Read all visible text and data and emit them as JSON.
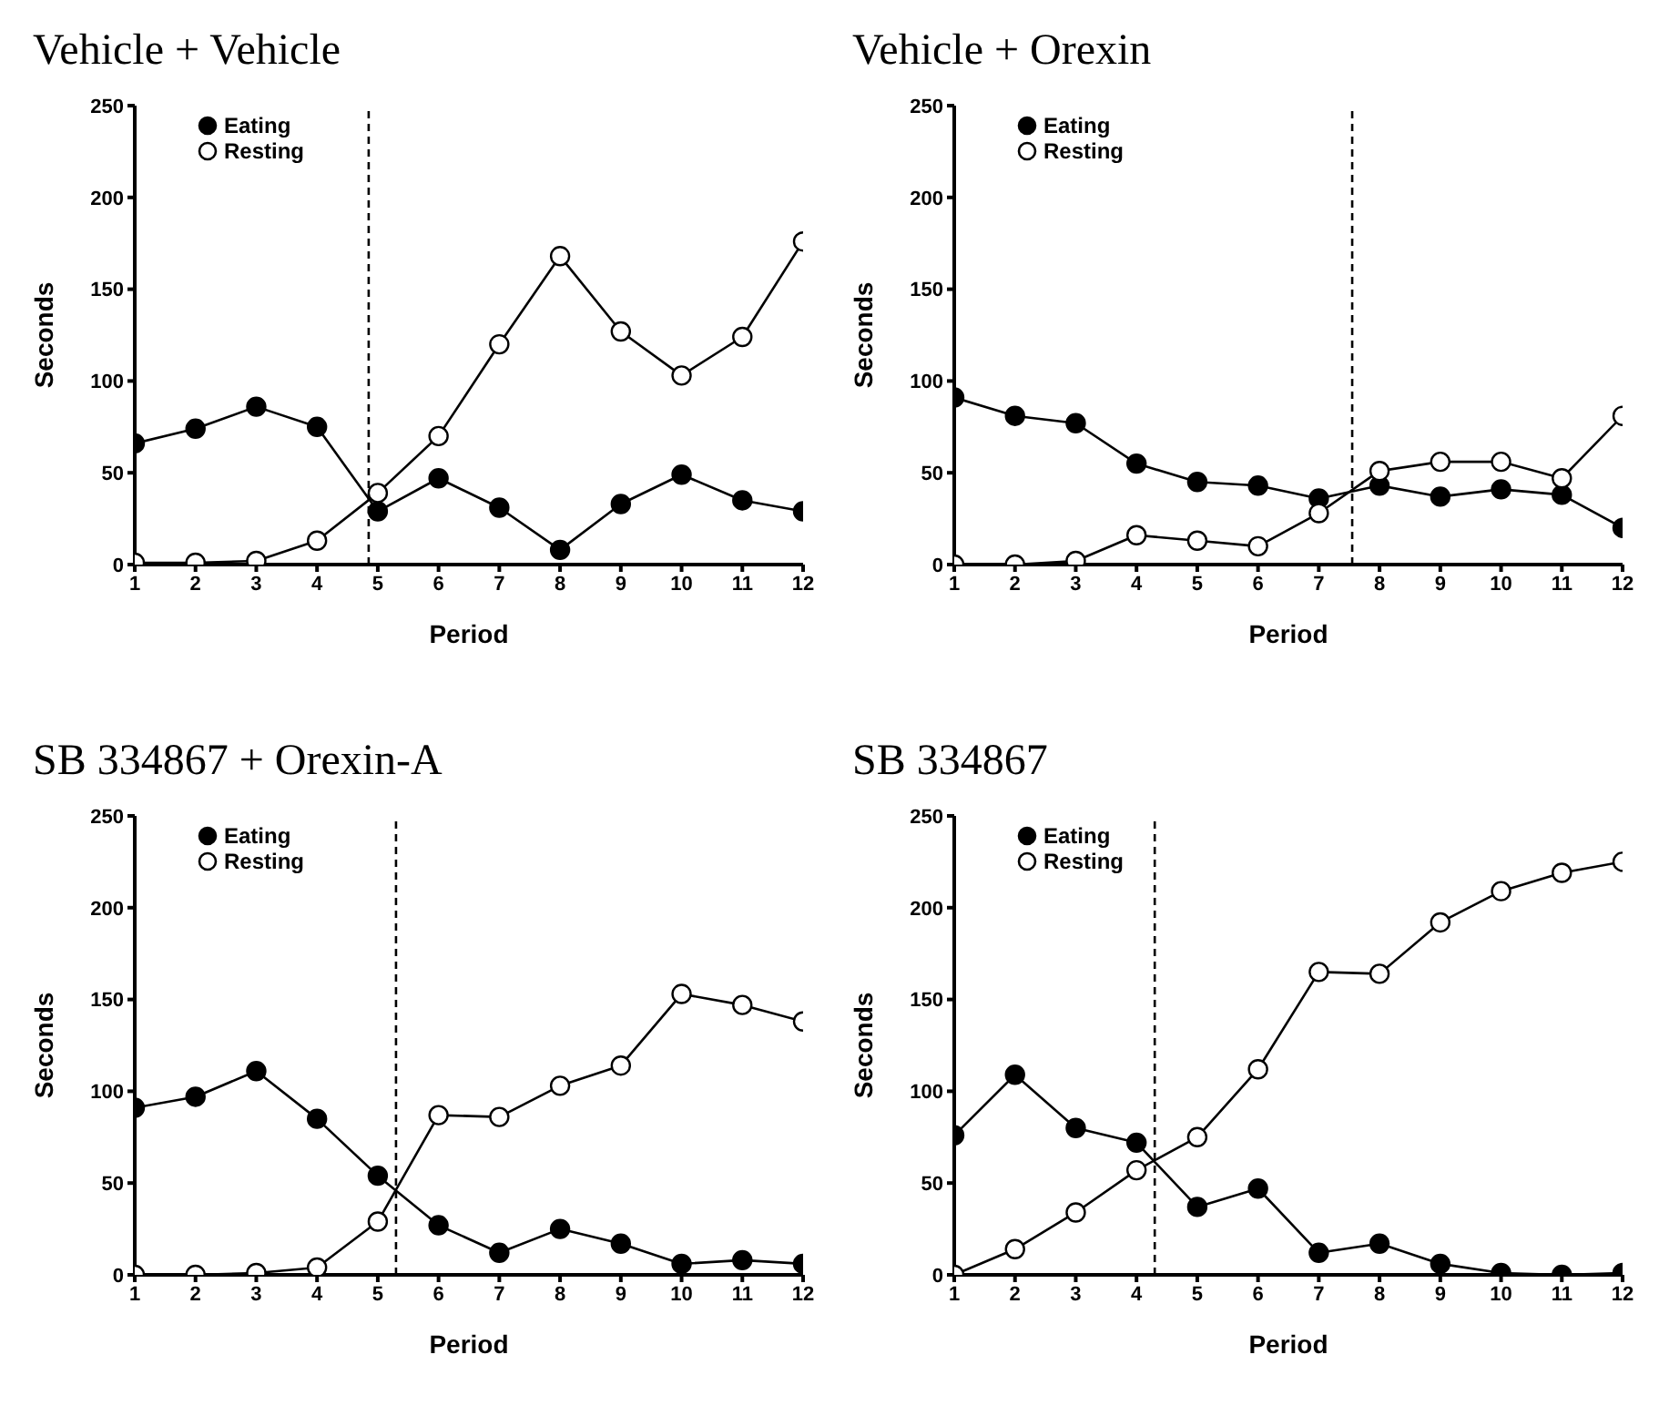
{
  "chart_data": [
    {
      "type": "line",
      "title": "Vehicle + Vehicle",
      "xlabel": "Period",
      "ylabel": "Seconds",
      "x": [
        1,
        2,
        3,
        4,
        5,
        6,
        7,
        8,
        9,
        10,
        11,
        12
      ],
      "xlim": [
        1,
        12
      ],
      "xticks": [
        1,
        2,
        3,
        4,
        5,
        6,
        7,
        8,
        9,
        10,
        11,
        12
      ],
      "ylim": [
        0,
        250
      ],
      "yticks": [
        0,
        50,
        100,
        150,
        200,
        250
      ],
      "legend": "top left",
      "marker": "circle",
      "grid": false,
      "series": [
        {
          "name": "Eating",
          "color": "#000000",
          "values": [
            66,
            74,
            86,
            75,
            29,
            47,
            31,
            8,
            33,
            49,
            35,
            29
          ]
        },
        {
          "name": "Resting",
          "color": "#ffffff",
          "values": [
            1,
            1,
            2,
            13,
            39,
            70,
            120,
            168,
            127,
            103,
            124,
            176
          ]
        }
      ],
      "ref_lines": [
        {
          "axis": "x",
          "value": 4.85,
          "color": "#000000",
          "line_style": "dashed"
        }
      ]
    },
    {
      "type": "line",
      "title": "Vehicle + Orexin",
      "xlabel": "Period",
      "ylabel": "Seconds",
      "x": [
        1,
        2,
        3,
        4,
        5,
        6,
        7,
        8,
        9,
        10,
        11,
        12
      ],
      "xlim": [
        1,
        12
      ],
      "xticks": [
        1,
        2,
        3,
        4,
        5,
        6,
        7,
        8,
        9,
        10,
        11,
        12
      ],
      "ylim": [
        0,
        250
      ],
      "yticks": [
        0,
        50,
        100,
        150,
        200,
        250
      ],
      "legend": "top left",
      "marker": "circle",
      "grid": false,
      "series": [
        {
          "name": "Eating",
          "color": "#000000",
          "values": [
            91,
            81,
            77,
            55,
            45,
            43,
            36,
            43,
            37,
            41,
            38,
            20
          ]
        },
        {
          "name": "Resting",
          "color": "#ffffff",
          "values": [
            0,
            0,
            2,
            16,
            13,
            10,
            28,
            51,
            56,
            56,
            47,
            81
          ]
        }
      ],
      "ref_lines": [
        {
          "axis": "x",
          "value": 7.55,
          "color": "#000000",
          "line_style": "dashed"
        }
      ]
    },
    {
      "type": "line",
      "title": "SB 334867 + Orexin-A",
      "xlabel": "Period",
      "ylabel": "Seconds",
      "x": [
        1,
        2,
        3,
        4,
        5,
        6,
        7,
        8,
        9,
        10,
        11,
        12
      ],
      "xlim": [
        1,
        12
      ],
      "xticks": [
        1,
        2,
        3,
        4,
        5,
        6,
        7,
        8,
        9,
        10,
        11,
        12
      ],
      "ylim": [
        0,
        250
      ],
      "yticks": [
        0,
        50,
        100,
        150,
        200,
        250
      ],
      "legend": "top left",
      "marker": "circle",
      "grid": false,
      "series": [
        {
          "name": "Eating",
          "color": "#000000",
          "values": [
            91,
            97,
            111,
            85,
            54,
            27,
            12,
            25,
            17,
            6,
            8,
            6
          ]
        },
        {
          "name": "Resting",
          "color": "#ffffff",
          "values": [
            0,
            0,
            1,
            4,
            29,
            87,
            86,
            103,
            114,
            153,
            147,
            138
          ]
        }
      ],
      "ref_lines": [
        {
          "axis": "x",
          "value": 5.3,
          "color": "#000000",
          "line_style": "dashed"
        }
      ]
    },
    {
      "type": "line",
      "title": "SB 334867",
      "xlabel": "Period",
      "ylabel": "Seconds",
      "x": [
        1,
        2,
        3,
        4,
        5,
        6,
        7,
        8,
        9,
        10,
        11,
        12
      ],
      "xlim": [
        1,
        12
      ],
      "xticks": [
        1,
        2,
        3,
        4,
        5,
        6,
        7,
        8,
        9,
        10,
        11,
        12
      ],
      "ylim": [
        0,
        250
      ],
      "yticks": [
        0,
        50,
        100,
        150,
        200,
        250
      ],
      "legend": "top left",
      "marker": "circle",
      "grid": false,
      "series": [
        {
          "name": "Eating",
          "color": "#000000",
          "values": [
            76,
            109,
            80,
            72,
            37,
            47,
            12,
            17,
            6,
            1,
            0,
            1
          ]
        },
        {
          "name": "Resting",
          "color": "#ffffff",
          "values": [
            0,
            14,
            34,
            57,
            75,
            112,
            165,
            164,
            192,
            209,
            219,
            225
          ]
        }
      ],
      "ref_lines": [
        {
          "axis": "x",
          "value": 4.3,
          "color": "#000000",
          "line_style": "dashed"
        }
      ]
    }
  ]
}
